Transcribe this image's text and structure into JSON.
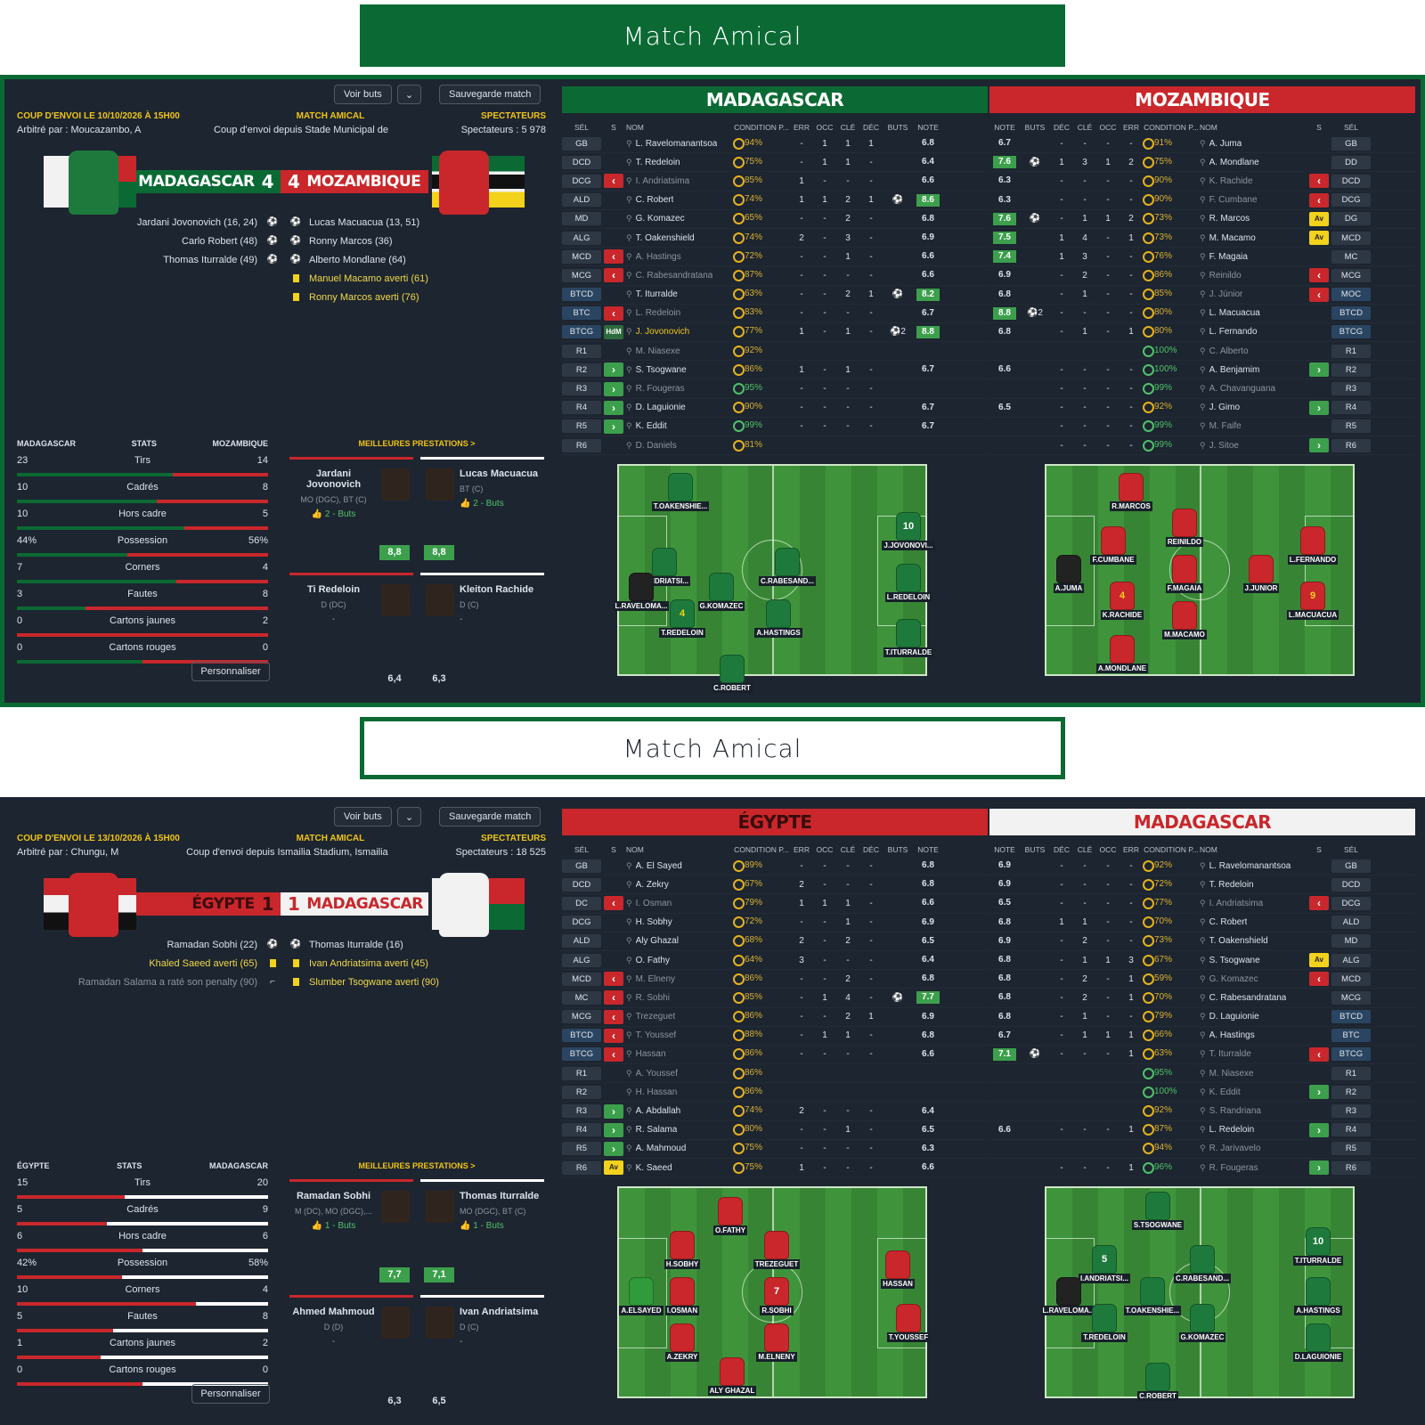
{
  "m1": {
    "banner": "Match Amical",
    "voir_buts": "Voir buts",
    "sauvegarde": "Sauvegarde match",
    "kickoff": "COUP D'ENVOI LE 10/10/2026 À 15H00",
    "type": "MATCH AMICAL",
    "spect_label": "SPECTATEURS",
    "referee": "Arbitré par : Moucazambo, A",
    "stadium": "Coup d'envoi depuis Stade Municipal de",
    "spectators": "Spectateurs : 5 978",
    "home": "MADAGASCAR",
    "home_score": "4",
    "away_score": "4",
    "away": "MOZAMBIQUE",
    "events": [
      {
        "l": "Jardani Jovonovich (16, 24)",
        "li": "⚽",
        "ri": "⚽",
        "r": "Lucas Macuacua (13, 51)"
      },
      {
        "l": "Carlo Robert (48)",
        "li": "⚽",
        "ri": "⚽",
        "r": "Ronny Marcos (36)"
      },
      {
        "l": "Thomas Iturralde (49)",
        "li": "⚽",
        "ri": "⚽",
        "r": "Alberto Mondlane (64)"
      },
      {
        "l": "",
        "li": "",
        "ri": "card",
        "r": "Manuel Macamo averti (61)"
      },
      {
        "l": "",
        "li": "",
        "ri": "card",
        "r": "Ronny Marcos averti (76)"
      }
    ],
    "stats_home": "MADAGASCAR",
    "stats_label": "STATS",
    "stats_away": "MOZAMBIQUE",
    "stats": [
      {
        "h": "23",
        "n": "Tirs",
        "a": "14"
      },
      {
        "h": "10",
        "n": "Cadrés",
        "a": "8"
      },
      {
        "h": "10",
        "n": "Hors cadre",
        "a": "5"
      },
      {
        "h": "44%",
        "n": "Possession",
        "a": "56%"
      },
      {
        "h": "7",
        "n": "Corners",
        "a": "4"
      },
      {
        "h": "3",
        "n": "Fautes",
        "a": "8"
      },
      {
        "h": "0",
        "n": "Cartons jaunes",
        "a": "2"
      },
      {
        "h": "0",
        "n": "Cartons rouges",
        "a": "0"
      }
    ],
    "personnaliser": "Personnaliser",
    "best_title": "MEILLEURES PRESTATIONS >",
    "best": [
      {
        "name": "Jardani Jovonovich",
        "pos": "MO (DGC), BT (C)",
        "buts": "2 - Buts",
        "note": "8,8"
      },
      {
        "name": "Lucas Macuacua",
        "pos": "BT (C)",
        "buts": "2 - Buts",
        "note": "8,8"
      },
      {
        "name": "Ti Redeloin",
        "pos": "D (DC)",
        "buts": "-",
        "note": "6,4"
      },
      {
        "name": "Kleiton Rachide",
        "pos": "D (C)",
        "buts": "-",
        "note": "6,3"
      }
    ],
    "tl_name": "MADAGASCAR",
    "tr_name": "MOZAMBIQUE",
    "heads_l": [
      "SÉL",
      "S",
      "NOM",
      "CONDITION P...",
      "ERR",
      "OCC",
      "CLÉ",
      "DÉC",
      "BUTS",
      "NOTE"
    ],
    "heads_r": [
      "NOTE",
      "BUTS",
      "DÉC",
      "CLÉ",
      "OCC",
      "ERR",
      "CONDITION P...",
      "NOM",
      "S",
      "SÉL"
    ],
    "left": [
      [
        "GB",
        "",
        "L. Ravelomanantsoa",
        "94%",
        "-",
        "1",
        "1",
        "1",
        "",
        "6.8"
      ],
      [
        "DCD",
        "",
        "T. Redeloin",
        "75%",
        "-",
        "1",
        "1",
        "-",
        "",
        "6.4"
      ],
      [
        "DCG",
        "out",
        "I. Andriatsima",
        "85%",
        "1",
        "-",
        "-",
        "-",
        "",
        "6.6"
      ],
      [
        "ALD",
        "",
        "C. Robert",
        "74%",
        "1",
        "1",
        "2",
        "1",
        "⚽",
        "8.6"
      ],
      [
        "MD",
        "",
        "G. Komazec",
        "65%",
        "-",
        "-",
        "2",
        "-",
        "",
        "6.8"
      ],
      [
        "ALG",
        "",
        "T. Oakenshield",
        "74%",
        "2",
        "-",
        "3",
        "-",
        "",
        "6.9"
      ],
      [
        "MCD",
        "out",
        "A. Hastings",
        "72%",
        "-",
        "-",
        "1",
        "-",
        "",
        "6.6"
      ],
      [
        "MCG",
        "out",
        "C. Rabesandratana",
        "87%",
        "-",
        "-",
        "-",
        "-",
        "",
        "6.6"
      ],
      [
        "BTCD",
        "",
        "T. Iturralde",
        "63%",
        "-",
        "-",
        "2",
        "1",
        "⚽",
        "8.2"
      ],
      [
        "BTC",
        "out",
        "L. Redeloin",
        "83%",
        "-",
        "-",
        "-",
        "-",
        "",
        "6.7"
      ],
      [
        "BTCG",
        "hdm",
        "J. Jovonovich",
        "77%",
        "1",
        "-",
        "1",
        "-",
        "⚽2",
        "8.8"
      ],
      [
        "R1",
        "",
        "M. Niasexe",
        "92%",
        "",
        "",
        "",
        "",
        "",
        ""
      ],
      [
        "R2",
        "in",
        "S. Tsogwane",
        "86%",
        "1",
        "-",
        "1",
        "-",
        "",
        "6.7"
      ],
      [
        "R3",
        "in",
        "R. Fougeras",
        "95%",
        "-",
        "-",
        "-",
        "-",
        "",
        ""
      ],
      [
        "R4",
        "in",
        "D. Laguionie",
        "90%",
        "-",
        "-",
        "-",
        "-",
        "",
        "6.7"
      ],
      [
        "R5",
        "in",
        "K. Eddit",
        "99%",
        "-",
        "-",
        "-",
        "-",
        "",
        "6.7"
      ],
      [
        "R6",
        "",
        "D. Daniels",
        "81%",
        "",
        "",
        "",
        "",
        "",
        ""
      ]
    ],
    "right": [
      [
        "6.7",
        "",
        "-",
        "-",
        "-",
        "-",
        "91%",
        "A. Juma",
        "",
        "GB"
      ],
      [
        "7.6",
        "⚽",
        "1",
        "3",
        "1",
        "2",
        "75%",
        "A. Mondlane",
        "",
        "DD"
      ],
      [
        "6.3",
        "",
        "-",
        "-",
        "-",
        "-",
        "90%",
        "K. Rachide",
        "out",
        "DCD"
      ],
      [
        "6.3",
        "",
        "-",
        "-",
        "-",
        "-",
        "90%",
        "F. Cumbane",
        "out",
        "DCG"
      ],
      [
        "7.6",
        "⚽",
        "-",
        "1",
        "1",
        "2",
        "73%",
        "R. Marcos",
        "av",
        "DG"
      ],
      [
        "7.5",
        "",
        "1",
        "4",
        "-",
        "1",
        "73%",
        "M. Macamo",
        "av",
        "MCD"
      ],
      [
        "7.4",
        "",
        "1",
        "3",
        "-",
        "-",
        "76%",
        "F. Magaia",
        "",
        "MC"
      ],
      [
        "6.9",
        "",
        "-",
        "2",
        "-",
        "-",
        "86%",
        "Reinildo",
        "out",
        "MCG"
      ],
      [
        "6.8",
        "",
        "-",
        "1",
        "-",
        "-",
        "85%",
        "J. Júnior",
        "out",
        "MOC"
      ],
      [
        "8.8",
        "⚽2",
        "-",
        "-",
        "-",
        "-",
        "80%",
        "L. Macuacua",
        "",
        "BTCD"
      ],
      [
        "6.8",
        "",
        "-",
        "1",
        "-",
        "1",
        "80%",
        "L. Fernando",
        "",
        "BTCG"
      ],
      [
        "",
        "",
        "",
        "",
        "",
        "",
        "100%",
        "C. Alberto",
        "",
        "R1"
      ],
      [
        "6.6",
        "",
        "-",
        "-",
        "-",
        "-",
        "100%",
        "A. Benjamim",
        "in",
        "R2"
      ],
      [
        "",
        "",
        "-",
        "-",
        "-",
        "-",
        "99%",
        "Á. Chavanguana",
        "",
        "R3"
      ],
      [
        "6.5",
        "",
        "-",
        "-",
        "-",
        "-",
        "92%",
        "J. Gimo",
        "in",
        "R4"
      ],
      [
        "",
        "",
        "-",
        "-",
        "-",
        "-",
        "99%",
        "M. Faife",
        "",
        "R5"
      ],
      [
        "",
        "",
        "-",
        "-",
        "-",
        "-",
        "99%",
        "J. Sitoe",
        "in",
        "R6"
      ]
    ],
    "pitch_l": [
      {
        "n": "T.OAKENSHIE...",
        "k": ""
      },
      {
        "n": "J.JOVONOVI...",
        "k": "10"
      },
      {
        "n": "I.ANDRIATSI...",
        "k": ""
      },
      {
        "n": "C.RABESAND...",
        "k": ""
      },
      {
        "n": "L.RAVELOMA...",
        "k": ""
      },
      {
        "n": "G.KOMAZEC",
        "k": ""
      },
      {
        "n": "L.REDELOIN",
        "k": ""
      },
      {
        "n": "T.REDELOIN",
        "k": "4"
      },
      {
        "n": "A.HASTINGS",
        "k": ""
      },
      {
        "n": "T.ITURRALDE",
        "k": ""
      },
      {
        "n": "C.ROBERT",
        "k": ""
      }
    ],
    "pitch_r": [
      {
        "n": "R.MARCOS",
        "k": ""
      },
      {
        "n": "REINILDO",
        "k": ""
      },
      {
        "n": "F.CUMBANE",
        "k": ""
      },
      {
        "n": "L.FERNANDO",
        "k": ""
      },
      {
        "n": "A.JUMA",
        "k": ""
      },
      {
        "n": "F.MAGAIA",
        "k": ""
      },
      {
        "n": "J.JUNIOR",
        "k": ""
      },
      {
        "n": "K.RACHIDE",
        "k": "4"
      },
      {
        "n": "L.MACUACUA",
        "k": "9"
      },
      {
        "n": "M.MACAMO",
        "k": ""
      },
      {
        "n": "A.MONDLANE",
        "k": ""
      }
    ]
  },
  "m2": {
    "banner": "Match Amical",
    "voir_buts": "Voir buts",
    "sauvegarde": "Sauvegarde match",
    "kickoff": "COUP D'ENVOI LE 13/10/2026 À 15H00",
    "type": "MATCH AMICAL",
    "spect_label": "SPECTATEURS",
    "referee": "Arbitré par : Chungu, M",
    "stadium": "Coup d'envoi depuis Ismailia Stadium, Ismailia",
    "spectators": "Spectateurs : 18 525",
    "home": "ÉGYPTE",
    "home_score": "1",
    "away_score": "1",
    "away": "MADAGASCAR",
    "events": [
      {
        "l": "Ramadan Sobhi (22)",
        "li": "⚽",
        "ri": "⚽",
        "r": "Thomas Iturralde (16)"
      },
      {
        "l": "Khaled Saeed averti (65)",
        "li": "card",
        "ri": "card",
        "r": "Ivan Andriatsima averti (45)"
      },
      {
        "l": "Ramadan Salama a raté son penalty (90)",
        "li": "⌐",
        "ri": "card",
        "r": "Slumber Tsogwane averti (90)"
      }
    ],
    "stats_home": "ÉGYPTE",
    "stats_label": "STATS",
    "stats_away": "MADAGASCAR",
    "stats": [
      {
        "h": "15",
        "n": "Tirs",
        "a": "20"
      },
      {
        "h": "5",
        "n": "Cadrés",
        "a": "9"
      },
      {
        "h": "6",
        "n": "Hors cadre",
        "a": "6"
      },
      {
        "h": "42%",
        "n": "Possession",
        "a": "58%"
      },
      {
        "h": "10",
        "n": "Corners",
        "a": "4"
      },
      {
        "h": "5",
        "n": "Fautes",
        "a": "8"
      },
      {
        "h": "1",
        "n": "Cartons jaunes",
        "a": "2"
      },
      {
        "h": "0",
        "n": "Cartons rouges",
        "a": "0"
      }
    ],
    "personnaliser": "Personnaliser",
    "best_title": "MEILLEURES PRESTATIONS >",
    "best": [
      {
        "name": "Ramadan Sobhi",
        "pos": "M (DC), MO (DGC),...",
        "buts": "1 - Buts",
        "note": "7,7"
      },
      {
        "name": "Thomas Iturralde",
        "pos": "MO (DGC), BT (C)",
        "buts": "1 - Buts",
        "note": "7,1"
      },
      {
        "name": "Ahmed Mahmoud",
        "pos": "D (D)",
        "buts": "-",
        "note": "6,3"
      },
      {
        "name": "Ivan Andriatsima",
        "pos": "D (C)",
        "buts": "-",
        "note": "6,5"
      }
    ],
    "tl_name": "ÉGYPTE",
    "tr_name": "MADAGASCAR",
    "heads_l": [
      "SÉL",
      "S",
      "NOM",
      "CONDITION P...",
      "ERR",
      "OCC",
      "CLÉ",
      "DÉC",
      "BUTS",
      "NOTE"
    ],
    "heads_r": [
      "NOTE",
      "BUTS",
      "DÉC",
      "CLÉ",
      "OCC",
      "ERR",
      "CONDITION P...",
      "NOM",
      "S",
      "SÉL"
    ],
    "left": [
      [
        "GB",
        "",
        "A. El Sayed",
        "89%",
        "-",
        "-",
        "-",
        "-",
        "",
        "6.8"
      ],
      [
        "DCD",
        "",
        "A. Zekry",
        "67%",
        "2",
        "-",
        "-",
        "-",
        "",
        "6.8"
      ],
      [
        "DC",
        "out",
        "I. Osman",
        "79%",
        "1",
        "1",
        "1",
        "-",
        "",
        "6.6"
      ],
      [
        "DCG",
        "",
        "H. Sobhy",
        "72%",
        "-",
        "-",
        "1",
        "-",
        "",
        "6.9"
      ],
      [
        "ALD",
        "",
        "Aly Ghazal",
        "68%",
        "2",
        "-",
        "2",
        "-",
        "",
        "6.5"
      ],
      [
        "ALG",
        "",
        "O. Fathy",
        "64%",
        "3",
        "-",
        "-",
        "-",
        "",
        "6.4"
      ],
      [
        "MCD",
        "out",
        "M. Elneny",
        "86%",
        "-",
        "-",
        "2",
        "-",
        "",
        "6.8"
      ],
      [
        "MC",
        "out",
        "R. Sobhi",
        "85%",
        "-",
        "1",
        "4",
        "-",
        "⚽",
        "7.7"
      ],
      [
        "MCG",
        "out",
        "Trezeguet",
        "86%",
        "-",
        "-",
        "2",
        "1",
        "",
        "6.9"
      ],
      [
        "BTCD",
        "out",
        "T. Youssef",
        "88%",
        "-",
        "1",
        "1",
        "-",
        "",
        "6.8"
      ],
      [
        "BTCG",
        "out",
        "Hassan",
        "86%",
        "-",
        "-",
        "-",
        "-",
        "",
        "6.6"
      ],
      [
        "R1",
        "",
        "A. Youssef",
        "86%",
        "",
        "",
        "",
        "",
        "",
        ""
      ],
      [
        "R2",
        "",
        "H. Hassan",
        "86%",
        "",
        "",
        "",
        "",
        "",
        ""
      ],
      [
        "R3",
        "in",
        "A. Abdallah",
        "74%",
        "2",
        "-",
        "-",
        "-",
        "",
        "6.4"
      ],
      [
        "R4",
        "in",
        "R. Salama",
        "80%",
        "-",
        "-",
        "1",
        "-",
        "",
        "6.5"
      ],
      [
        "R5",
        "in",
        "A. Mahmoud",
        "75%",
        "-",
        "-",
        "-",
        "-",
        "",
        "6.3"
      ],
      [
        "R6",
        "av",
        "K. Saeed",
        "75%",
        "1",
        "-",
        "-",
        "-",
        "",
        "6.6"
      ]
    ],
    "right": [
      [
        "6.9",
        "",
        "-",
        "-",
        "-",
        "-",
        "92%",
        "L. Ravelomanantsoa",
        "",
        "GB"
      ],
      [
        "6.9",
        "",
        "-",
        "-",
        "-",
        "-",
        "72%",
        "T. Redeloin",
        "",
        "DCD"
      ],
      [
        "6.5",
        "",
        "-",
        "-",
        "-",
        "-",
        "77%",
        "I. Andriatsima",
        "out",
        "DCG"
      ],
      [
        "6.8",
        "",
        "1",
        "1",
        "-",
        "-",
        "70%",
        "C. Robert",
        "",
        "ALD"
      ],
      [
        "6.9",
        "",
        "-",
        "2",
        "-",
        "-",
        "73%",
        "T. Oakenshield",
        "",
        "MD"
      ],
      [
        "6.8",
        "",
        "-",
        "1",
        "1",
        "3",
        "67%",
        "S. Tsogwane",
        "av",
        "ALG"
      ],
      [
        "6.8",
        "",
        "-",
        "2",
        "-",
        "1",
        "59%",
        "G. Komazec",
        "out",
        "MCD"
      ],
      [
        "6.8",
        "",
        "-",
        "2",
        "-",
        "1",
        "70%",
        "C. Rabesandratana",
        "",
        "MCG"
      ],
      [
        "6.8",
        "",
        "-",
        "1",
        "-",
        "-",
        "79%",
        "D. Laguionie",
        "",
        "BTCD"
      ],
      [
        "6.7",
        "",
        "-",
        "1",
        "1",
        "1",
        "66%",
        "A. Hastings",
        "",
        "BTC"
      ],
      [
        "7.1",
        "⚽",
        "-",
        "-",
        "-",
        "1",
        "63%",
        "T. Iturralde",
        "out",
        "BTCG"
      ],
      [
        "",
        "",
        "",
        "",
        "",
        "",
        "95%",
        "M. Niasexe",
        "",
        "R1"
      ],
      [
        "",
        "",
        "",
        "",
        "",
        "",
        "100%",
        "K. Eddit",
        "in",
        "R2"
      ],
      [
        "",
        "",
        "",
        "",
        "",
        "",
        "92%",
        "S. Randriana",
        "",
        "R3"
      ],
      [
        "6.6",
        "",
        "-",
        "-",
        "-",
        "1",
        "87%",
        "L. Redeloin",
        "in",
        "R4"
      ],
      [
        "",
        "",
        "",
        "",
        "",
        "",
        "94%",
        "R. Jarivavelo",
        "",
        "R5"
      ],
      [
        "",
        "",
        "-",
        "-",
        "-",
        "1",
        "96%",
        "R. Fougeras",
        "in",
        "R6"
      ]
    ],
    "pitch_l": [
      {
        "n": "O.FATHY",
        "k": ""
      },
      {
        "n": "H.SOBHY",
        "k": ""
      },
      {
        "n": "TREZEGUET",
        "k": ""
      },
      {
        "n": "HASSAN",
        "k": ""
      },
      {
        "n": "A.ELSAYED",
        "k": ""
      },
      {
        "n": "I.OSMAN",
        "k": ""
      },
      {
        "n": "R.SOBHI",
        "k": "7"
      },
      {
        "n": "T.YOUSSEF",
        "k": ""
      },
      {
        "n": "A.ZEKRY",
        "k": ""
      },
      {
        "n": "M.ELNENY",
        "k": ""
      },
      {
        "n": "ALY GHAZAL",
        "k": ""
      }
    ],
    "pitch_r": [
      {
        "n": "S.TSOGWANE",
        "k": ""
      },
      {
        "n": "I.ANDRIATSI...",
        "k": "5"
      },
      {
        "n": "C.RABESAND...",
        "k": ""
      },
      {
        "n": "T.ITURRALDE",
        "k": "10"
      },
      {
        "n": "L.RAVELOMA...",
        "k": ""
      },
      {
        "n": "T.OAKENSHIE...",
        "k": ""
      },
      {
        "n": "A.HASTINGS",
        "k": ""
      },
      {
        "n": "T.REDELOIN",
        "k": ""
      },
      {
        "n": "G.KOMAZEC",
        "k": ""
      },
      {
        "n": "D.LAGUIONIE",
        "k": ""
      },
      {
        "n": "C.ROBERT",
        "k": ""
      }
    ]
  },
  "colors": {
    "green": "#0b6a34",
    "red": "#c9272b",
    "white": "#f2f2f2",
    "panel": "#1d2530"
  }
}
